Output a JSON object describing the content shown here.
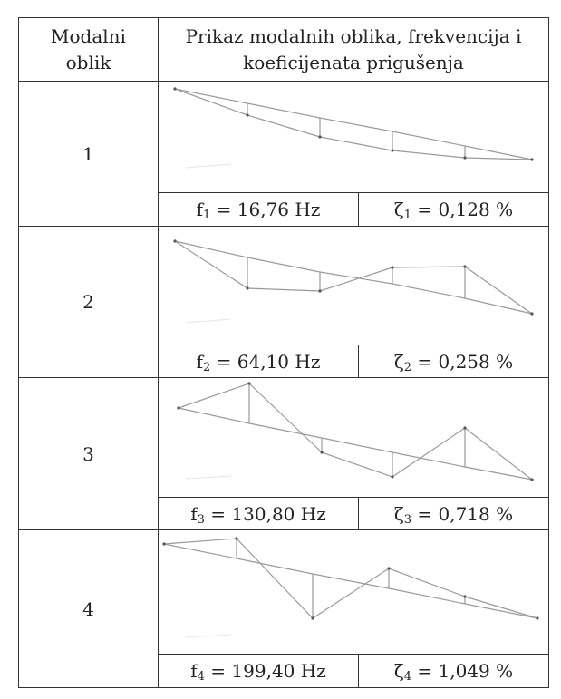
{
  "table": {
    "header": {
      "col1": "Modalni oblik",
      "col2": "Prikaz modalnih oblika, frekvencija i koeficijenata prigušenja"
    },
    "rows": [
      {
        "mode": "1",
        "freq_symbol": "f",
        "freq_sub": "1",
        "freq_value": " = 16,76 Hz",
        "damp_symbol": "ζ",
        "damp_sub": "1",
        "damp_value": " = 0,128 %"
      },
      {
        "mode": "2",
        "freq_symbol": "f",
        "freq_sub": "2",
        "freq_value": " = 64,10 Hz",
        "damp_symbol": "ζ",
        "damp_sub": "2",
        "damp_value": " = 0,258 %"
      },
      {
        "mode": "3",
        "freq_symbol": "f",
        "freq_sub": "3",
        "freq_value": " = 130,80 Hz",
        "damp_symbol": "ζ",
        "damp_sub": "3",
        "damp_value": " = 0,718 %"
      },
      {
        "mode": "4",
        "freq_symbol": "f",
        "freq_sub": "4",
        "freq_value": " = 199,40 Hz",
        "damp_symbol": "ζ",
        "damp_sub": "4",
        "damp_value": " = 1,049 %"
      }
    ]
  },
  "colors": {
    "line": "#9a9a9a",
    "node": "#555555",
    "border": "#333333"
  }
}
